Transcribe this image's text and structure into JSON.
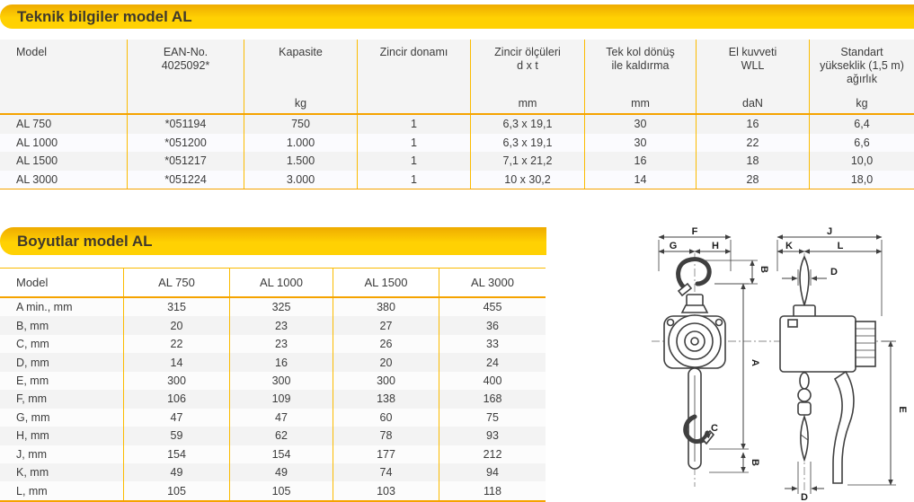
{
  "colors": {
    "banner_yellow": "#ffd103",
    "banner_yellow_dark": "#eeab00",
    "separator_orange": "#fbbb00",
    "rule_orange": "#f5a300",
    "row_stripe": "#f3f3f3",
    "text_dark": "#3b3b3b"
  },
  "section1": {
    "title": "Teknik bilgiler model AL",
    "table": {
      "columns": [
        {
          "lines": [
            "Model"
          ],
          "unit": ""
        },
        {
          "lines": [
            "EAN-No.",
            "4025092*"
          ],
          "unit": ""
        },
        {
          "lines": [
            "Kapasite"
          ],
          "unit": "kg"
        },
        {
          "lines": [
            "Zincir donamı"
          ],
          "unit": ""
        },
        {
          "lines": [
            "Zincir ölçüleri",
            "d x t"
          ],
          "unit": "mm"
        },
        {
          "lines": [
            "Tek kol dönüş",
            "ile kaldırma"
          ],
          "unit": "mm"
        },
        {
          "lines": [
            "El kuvveti",
            "WLL"
          ],
          "unit": "daN"
        },
        {
          "lines": [
            "Standart",
            "yükseklik (1,5 m)",
            "ağırlık"
          ],
          "unit": "kg"
        }
      ],
      "rows": [
        [
          "AL 750",
          "*051194",
          "750",
          "1",
          "6,3 x 19,1",
          "30",
          "16",
          "6,4"
        ],
        [
          "AL 1000",
          "*051200",
          "1.000",
          "1",
          "6,3 x 19,1",
          "30",
          "22",
          "6,6"
        ],
        [
          "AL 1500",
          "*051217",
          "1.500",
          "1",
          "7,1 x 21,2",
          "16",
          "18",
          "10,0"
        ],
        [
          "AL 3000",
          "*051224",
          "3.000",
          "1",
          "10 x 30,2",
          "14",
          "28",
          "18,0"
        ]
      ]
    }
  },
  "section2": {
    "title": "Boyutlar model AL",
    "table": {
      "columns": [
        "Model",
        "AL 750",
        "AL 1000",
        "AL 1500",
        "AL 3000"
      ],
      "rows": [
        {
          "label": "A min., mm",
          "values": [
            "315",
            "325",
            "380",
            "455"
          ]
        },
        {
          "label": "B, mm",
          "values": [
            "20",
            "23",
            "27",
            "36"
          ]
        },
        {
          "label": "C, mm",
          "values": [
            "22",
            "23",
            "26",
            "33"
          ]
        },
        {
          "label": "D, mm",
          "values": [
            "14",
            "16",
            "20",
            "24"
          ]
        },
        {
          "label": "E, mm",
          "values": [
            "300",
            "300",
            "300",
            "400"
          ]
        },
        {
          "label": "F, mm",
          "values": [
            "106",
            "109",
            "138",
            "168"
          ]
        },
        {
          "label": "G, mm",
          "values": [
            "47",
            "47",
            "60",
            "75"
          ]
        },
        {
          "label": "H, mm",
          "values": [
            "59",
            "62",
            "78",
            "93"
          ]
        },
        {
          "label": "J, mm",
          "values": [
            "154",
            "154",
            "177",
            "212"
          ]
        },
        {
          "label": "K, mm",
          "values": [
            "49",
            "49",
            "74",
            "94"
          ]
        },
        {
          "label": "L, mm",
          "values": [
            "105",
            "105",
            "103",
            "118"
          ]
        }
      ]
    }
  },
  "diagram": {
    "labels": {
      "a": "A",
      "b": "B",
      "c": "C",
      "d": "D",
      "e": "E",
      "f": "F",
      "g": "G",
      "h": "H",
      "j": "J",
      "k": "K",
      "l": "L"
    }
  }
}
